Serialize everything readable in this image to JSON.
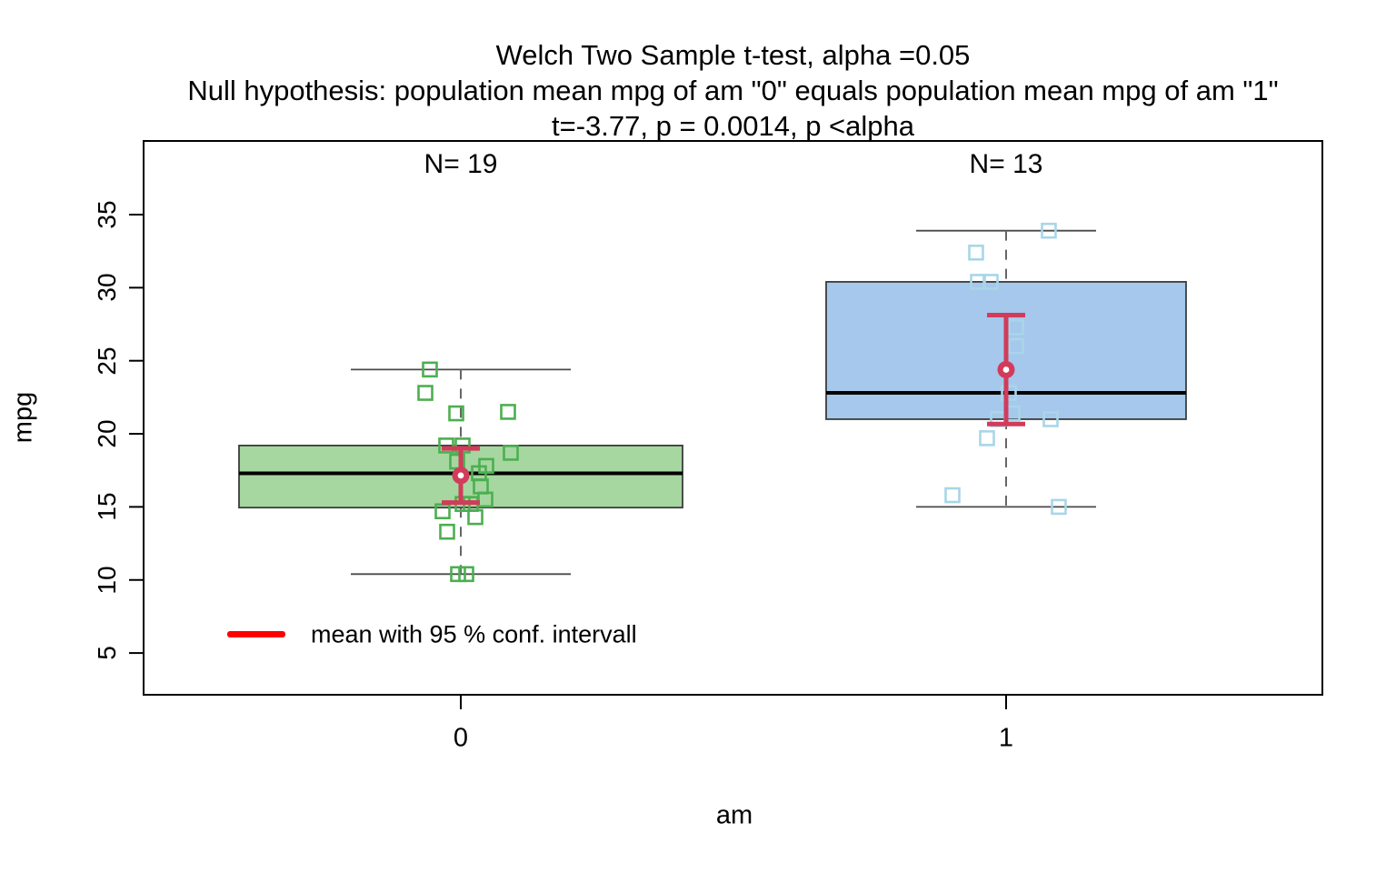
{
  "title": {
    "line1": "Welch Two Sample t-test, alpha =0.05",
    "line2": "Null hypothesis: population mean mpg of am \"0\" equals population mean mpg of am \"1\"",
    "line3": "t=-3.77, p = 0.0014, p <alpha"
  },
  "axes": {
    "y_label": "mpg",
    "x_label": "am",
    "y_ticks": [
      5,
      10,
      15,
      20,
      25,
      30,
      35
    ],
    "x_ticks": [
      "0",
      "1"
    ]
  },
  "legend": {
    "label": "mean with 95 % conf. intervall",
    "swatch_color": "#ff0000"
  },
  "chart_data": {
    "type": "boxplot",
    "title": "Welch Two Sample t-test, alpha =0.05",
    "xlabel": "am",
    "ylabel": "mpg",
    "ylim": [
      3,
      40
    ],
    "grid": false,
    "legend_position": "bottom-left-inside",
    "test": {
      "name": "Welch Two Sample t-test",
      "alpha": 0.05,
      "t": -3.77,
      "p": 0.0014,
      "conclusion": "p <alpha"
    },
    "mean_ci_color": "#d23b5a",
    "x_categories": [
      "0",
      "1"
    ],
    "groups": [
      {
        "label": "0",
        "n": 19,
        "n_label": "N= 19",
        "box_fill": "#a6d7a1",
        "point_color": "#4caf50",
        "stats": {
          "min": 10.4,
          "q1": 14.95,
          "median": 17.3,
          "q3": 19.2,
          "max": 24.4,
          "mean": 17.15,
          "ci_low": 15.3,
          "ci_high": 19.0
        },
        "points": [
          {
            "mpg": 24.4,
            "dx": -34
          },
          {
            "mpg": 22.8,
            "dx": -39
          },
          {
            "mpg": 21.5,
            "dx": 52
          },
          {
            "mpg": 21.4,
            "dx": -5
          },
          {
            "mpg": 19.2,
            "dx": -16
          },
          {
            "mpg": 19.2,
            "dx": 2
          },
          {
            "mpg": 18.7,
            "dx": 55
          },
          {
            "mpg": 18.1,
            "dx": -4
          },
          {
            "mpg": 17.8,
            "dx": 28
          },
          {
            "mpg": 17.3,
            "dx": 20
          },
          {
            "mpg": 16.4,
            "dx": 22
          },
          {
            "mpg": 15.5,
            "dx": 27
          },
          {
            "mpg": 15.2,
            "dx": 2
          },
          {
            "mpg": 15.2,
            "dx": 11
          },
          {
            "mpg": 14.7,
            "dx": -20
          },
          {
            "mpg": 14.3,
            "dx": 16
          },
          {
            "mpg": 13.3,
            "dx": -15
          },
          {
            "mpg": 10.4,
            "dx": -3
          },
          {
            "mpg": 10.4,
            "dx": 6
          }
        ]
      },
      {
        "label": "1",
        "n": 13,
        "n_label": "N= 13",
        "box_fill": "#a5c8ec",
        "point_color": "#a8d6e8",
        "stats": {
          "min": 15.0,
          "q1": 21.0,
          "median": 22.8,
          "q3": 30.4,
          "max": 33.9,
          "mean": 24.39,
          "ci_low": 20.67,
          "ci_high": 28.12
        },
        "points": [
          {
            "mpg": 33.9,
            "dx": 47
          },
          {
            "mpg": 32.4,
            "dx": -33
          },
          {
            "mpg": 30.4,
            "dx": -31
          },
          {
            "mpg": 30.4,
            "dx": -17
          },
          {
            "mpg": 27.3,
            "dx": 11
          },
          {
            "mpg": 26.0,
            "dx": 11
          },
          {
            "mpg": 22.8,
            "dx": 3
          },
          {
            "mpg": 21.4,
            "dx": 7
          },
          {
            "mpg": 21.0,
            "dx": 49
          },
          {
            "mpg": 21.0,
            "dx": -9
          },
          {
            "mpg": 19.7,
            "dx": -21
          },
          {
            "mpg": 15.8,
            "dx": -59
          },
          {
            "mpg": 15.0,
            "dx": 58
          }
        ]
      }
    ]
  }
}
